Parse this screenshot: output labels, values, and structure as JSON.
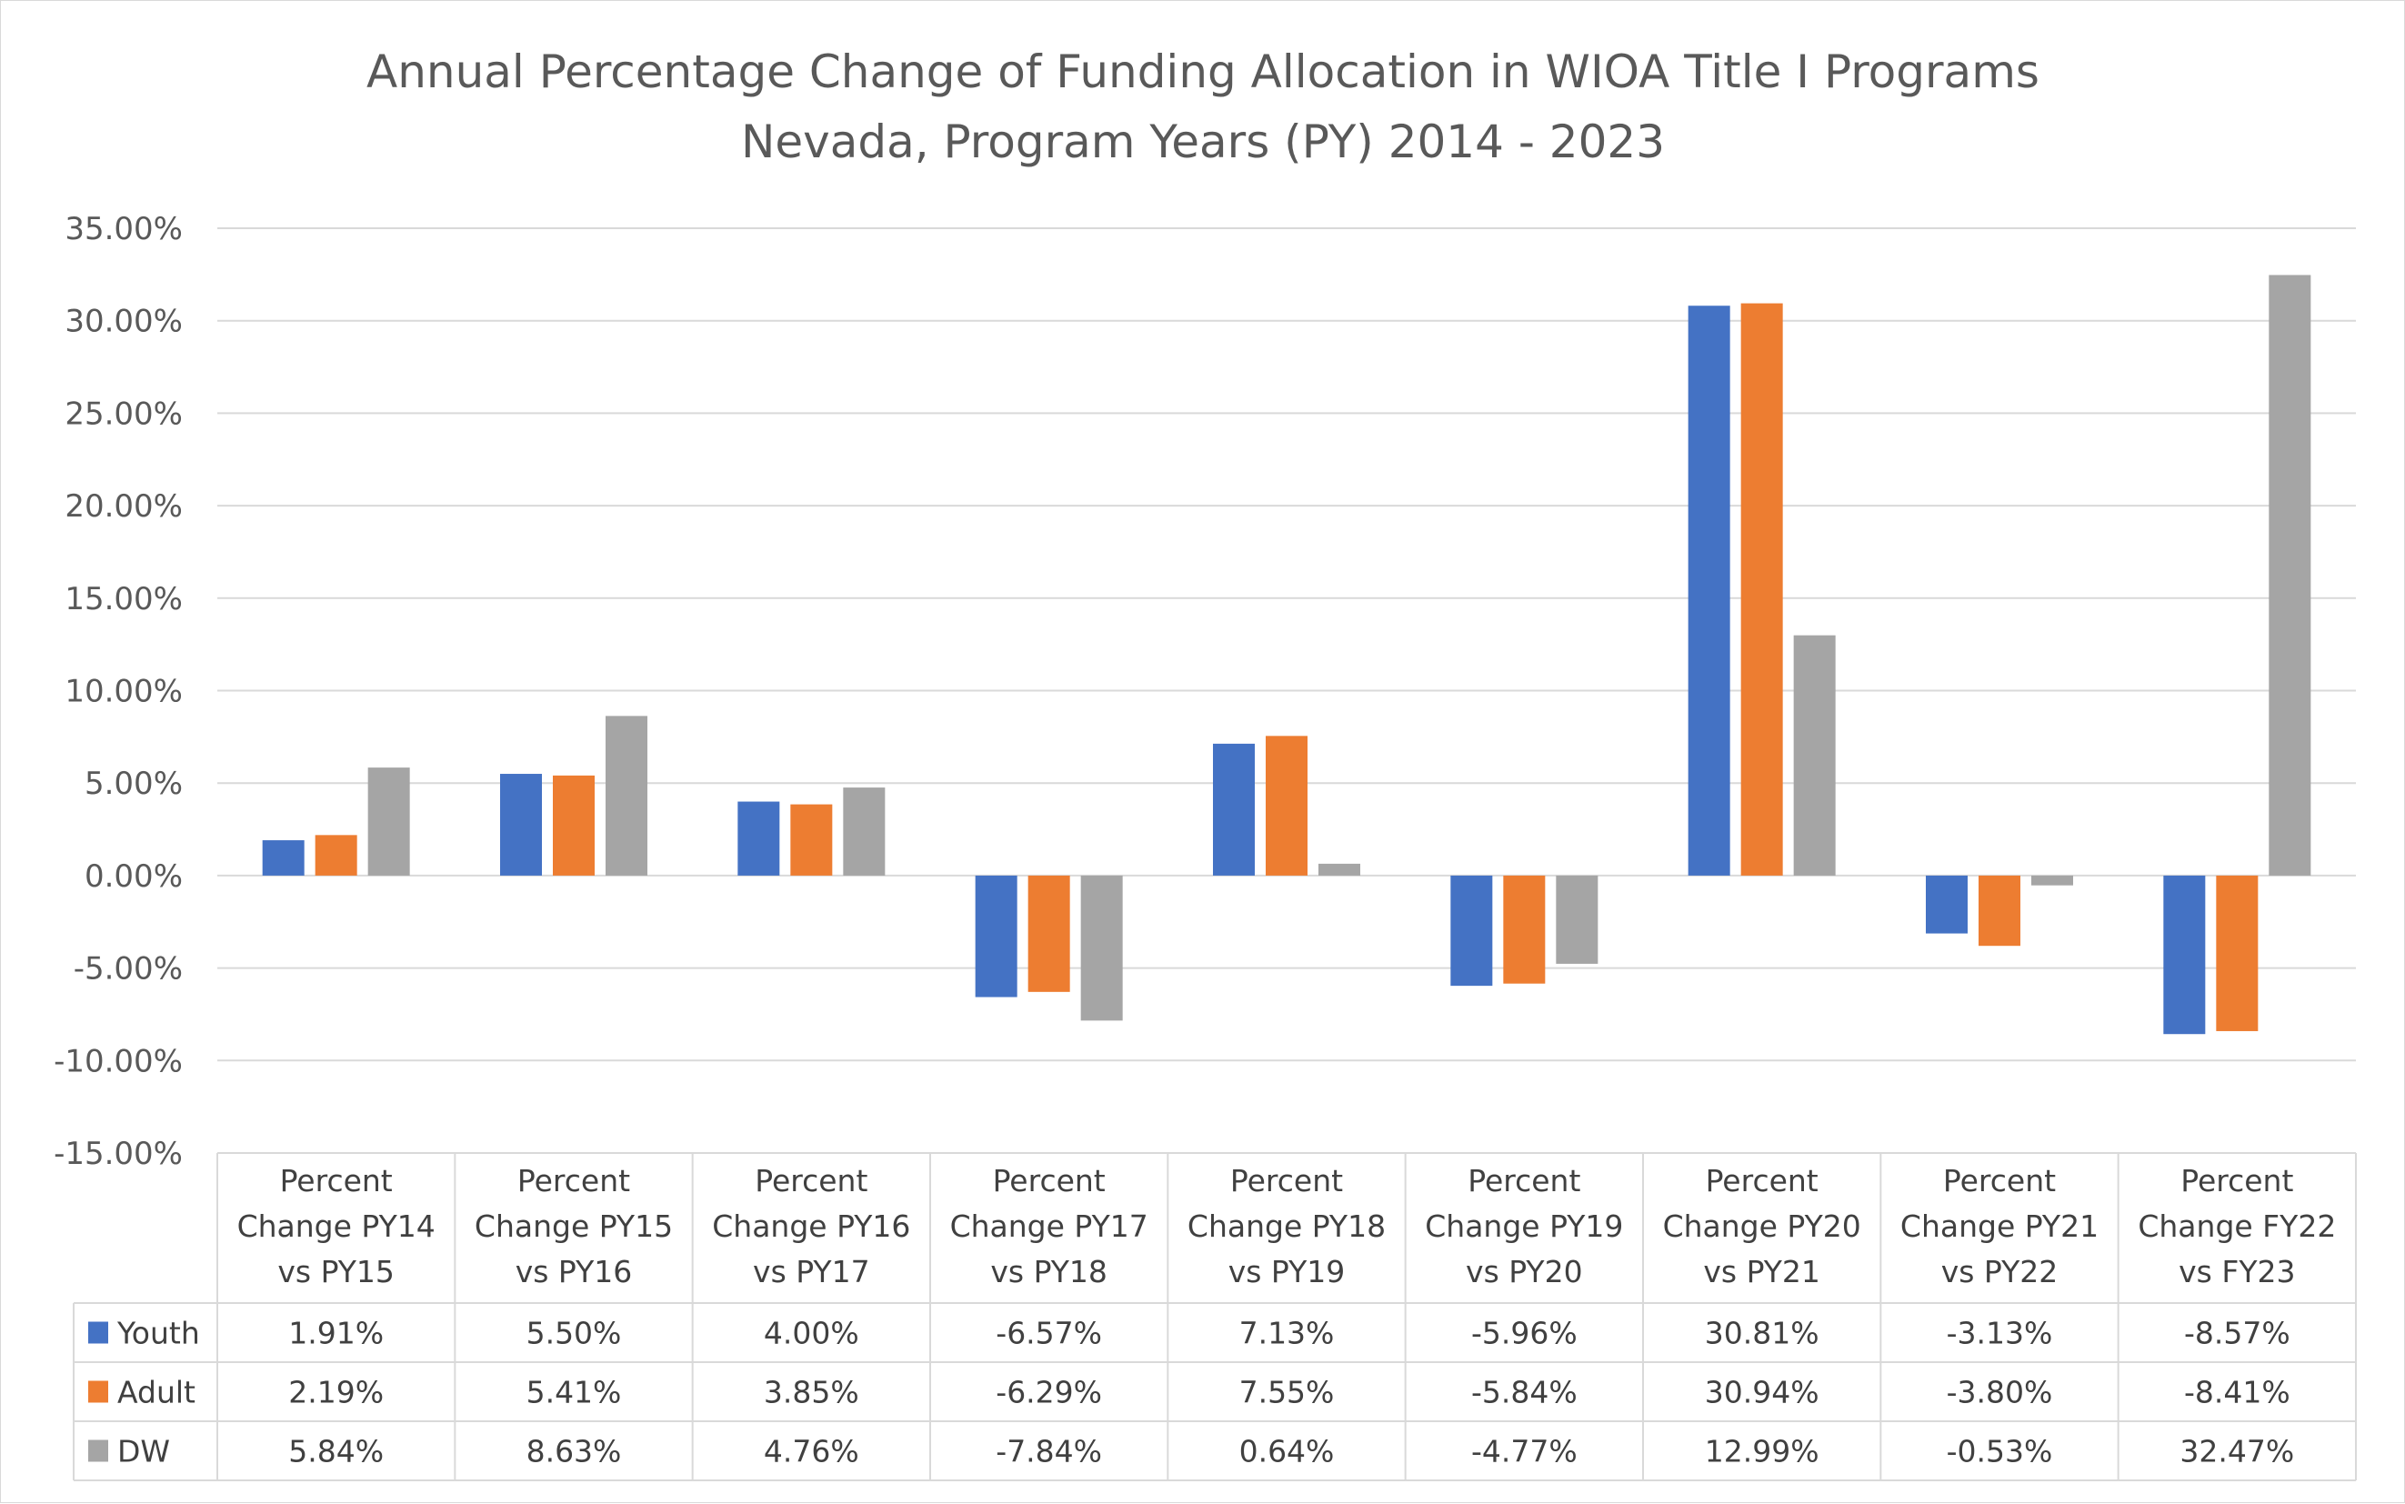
{
  "chart_data": {
    "type": "bar",
    "title_line1": "Annual Percentage Change of Funding Allocation in WIOA Title I Programs",
    "title_line2": "Nevada, Program Years (PY) 2014 - 2023",
    "categories": [
      [
        "Percent",
        "Change PY14",
        "vs PY15"
      ],
      [
        "Percent",
        "Change PY15",
        "vs PY16"
      ],
      [
        "Percent",
        "Change PY16",
        "vs PY17"
      ],
      [
        "Percent",
        "Change PY17",
        "vs PY18"
      ],
      [
        "Percent",
        "Change PY18",
        "vs PY19"
      ],
      [
        "Percent",
        "Change PY19",
        "vs PY20"
      ],
      [
        "Percent",
        "Change PY20",
        "vs PY21"
      ],
      [
        "Percent",
        "Change PY21",
        "vs PY22"
      ],
      [
        "Percent",
        "Change FY22",
        "vs FY23"
      ]
    ],
    "series": [
      {
        "name": "Youth",
        "color": "#4472C4",
        "values": [
          1.91,
          5.5,
          4.0,
          -6.57,
          7.13,
          -5.96,
          30.81,
          -3.13,
          -8.57
        ],
        "labels": [
          "1.91%",
          "5.50%",
          "4.00%",
          "-6.57%",
          "7.13%",
          "-5.96%",
          "30.81%",
          "-3.13%",
          "-8.57%"
        ]
      },
      {
        "name": "Adult",
        "color": "#ED7D31",
        "values": [
          2.19,
          5.41,
          3.85,
          -6.29,
          7.55,
          -5.84,
          30.94,
          -3.8,
          -8.41
        ],
        "labels": [
          "2.19%",
          "5.41%",
          "3.85%",
          "-6.29%",
          "7.55%",
          "-5.84%",
          "30.94%",
          "-3.80%",
          "-8.41%"
        ]
      },
      {
        "name": "DW",
        "color": "#A5A5A5",
        "values": [
          5.84,
          8.63,
          4.76,
          -7.84,
          0.64,
          -4.77,
          12.99,
          -0.53,
          32.47
        ],
        "labels": [
          "5.84%",
          "8.63%",
          "4.76%",
          "-7.84%",
          "0.64%",
          "-4.77%",
          "12.99%",
          "-0.53%",
          "32.47%"
        ]
      }
    ],
    "y_ticks": [
      35,
      30,
      25,
      20,
      15,
      10,
      5,
      0,
      -5,
      -10,
      -15
    ],
    "y_tick_labels": [
      "35.00%",
      "30.00%",
      "25.00%",
      "20.00%",
      "15.00%",
      "10.00%",
      "5.00%",
      "0.00%",
      "-5.00%",
      "-10.00%",
      "-15.00%"
    ],
    "ylim": [
      -15,
      35
    ],
    "grid": true,
    "legend": "data-table"
  }
}
